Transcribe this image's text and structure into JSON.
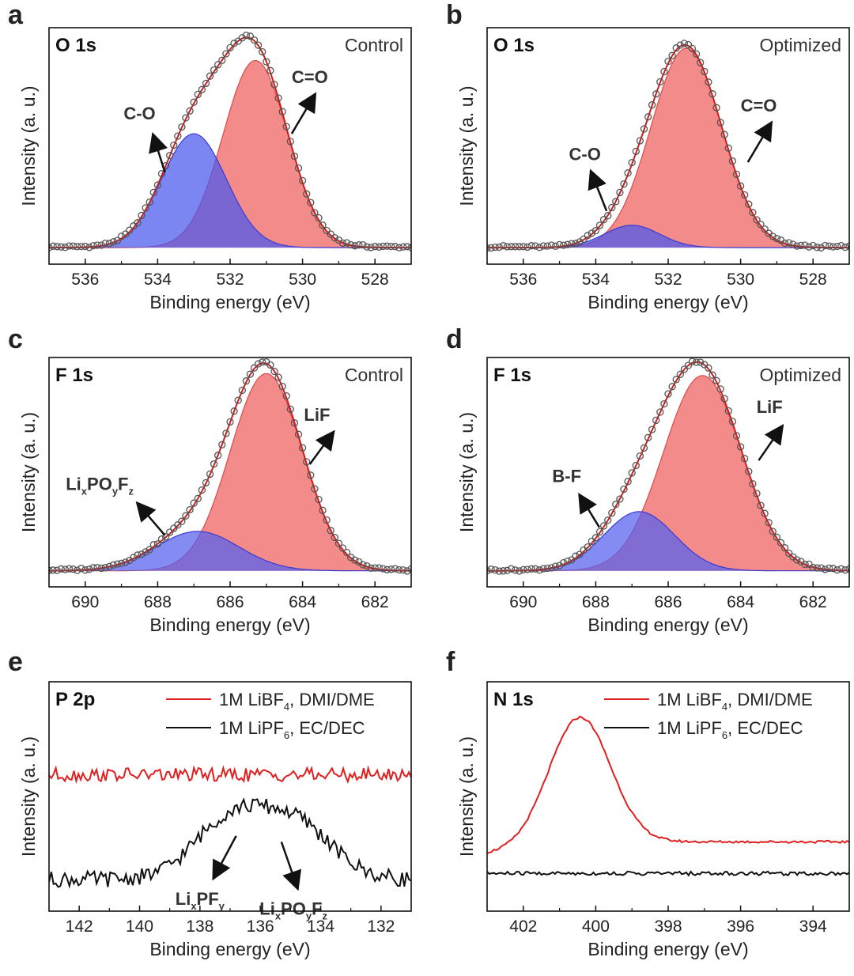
{
  "chart_data": [
    {
      "panel": "a",
      "type": "line",
      "core_level": "O 1s",
      "condition": "Control",
      "xlabel": "Binding energy (eV)",
      "ylabel": "Intensity (a. u.)",
      "xlim": [
        537,
        527
      ],
      "xticks": [
        536,
        534,
        532,
        530,
        528
      ],
      "ylim": [
        0,
        1
      ],
      "peaks": [
        {
          "name": "C-O",
          "center": 533.0,
          "height": 0.56,
          "fwhm": 2.1,
          "color": "#4a58ee"
        },
        {
          "name": "C=O",
          "center": 531.3,
          "height": 0.92,
          "fwhm": 2.1,
          "color": "#f06a6a"
        }
      ],
      "annotations": [
        {
          "text": "C-O",
          "arrow_from": [
            533.8,
            0.37
          ],
          "arrow_to": [
            534.1,
            0.54
          ],
          "text_pos": [
            534.5,
            0.63
          ]
        },
        {
          "text": "C=O",
          "arrow_from": [
            530.3,
            0.56
          ],
          "arrow_to": [
            529.7,
            0.74
          ],
          "text_pos": [
            529.8,
            0.81
          ]
        }
      ]
    },
    {
      "panel": "b",
      "type": "line",
      "core_level": "O 1s",
      "condition": "Optimized",
      "xlabel": "Binding energy (eV)",
      "ylabel": "Intensity (a. u.)",
      "xlim": [
        537,
        527
      ],
      "xticks": [
        536,
        534,
        532,
        530,
        528
      ],
      "ylim": [
        0,
        1
      ],
      "peaks": [
        {
          "name": "C-O",
          "center": 533.0,
          "height": 0.11,
          "fwhm": 1.8,
          "color": "#4a58ee"
        },
        {
          "name": "C=O",
          "center": 531.5,
          "height": 0.98,
          "fwhm": 2.3,
          "color": "#f06a6a"
        }
      ],
      "annotations": [
        {
          "text": "C-O",
          "arrow_from": [
            533.7,
            0.18
          ],
          "arrow_to": [
            534.1,
            0.36
          ],
          "text_pos": [
            534.3,
            0.43
          ]
        },
        {
          "text": "C=O",
          "arrow_from": [
            529.8,
            0.42
          ],
          "arrow_to": [
            529.2,
            0.6
          ],
          "text_pos": [
            529.5,
            0.67
          ]
        }
      ]
    },
    {
      "panel": "c",
      "type": "line",
      "core_level": "F 1s",
      "condition": "Control",
      "xlabel": "Binding energy (eV)",
      "ylabel": "Intensity (a. u.)",
      "xlim": [
        691,
        681
      ],
      "xticks": [
        690,
        688,
        686,
        684,
        682
      ],
      "ylim": [
        0,
        1
      ],
      "peaks": [
        {
          "name": "LixPOyFz",
          "center": 686.9,
          "height": 0.2,
          "fwhm": 2.7,
          "color": "#5560ee"
        },
        {
          "name": "LiF",
          "center": 685.0,
          "height": 1.0,
          "fwhm": 2.35,
          "color": "#f06a6a"
        }
      ],
      "annotations": [
        {
          "text": "LixPOyFz",
          "arrow_from": [
            687.8,
            0.18
          ],
          "arrow_to": [
            688.5,
            0.33
          ],
          "text_pos": [
            689.6,
            0.41
          ]
        },
        {
          "text": "LiF",
          "arrow_from": [
            683.8,
            0.54
          ],
          "arrow_to": [
            683.2,
            0.69
          ],
          "text_pos": [
            683.6,
            0.76
          ]
        }
      ]
    },
    {
      "panel": "d",
      "type": "line",
      "core_level": "F 1s",
      "condition": "Optimized",
      "xlabel": "Binding energy (eV)",
      "ylabel": "Intensity (a. u.)",
      "xlim": [
        691,
        681
      ],
      "xticks": [
        690,
        688,
        686,
        684,
        682
      ],
      "ylim": [
        0,
        1
      ],
      "peaks": [
        {
          "name": "B-F",
          "center": 686.8,
          "height": 0.3,
          "fwhm": 2.3,
          "color": "#5560ee"
        },
        {
          "name": "LiF",
          "center": 685.05,
          "height": 0.99,
          "fwhm": 2.55,
          "color": "#f06a6a"
        }
      ],
      "annotations": [
        {
          "text": "B-F",
          "arrow_from": [
            687.9,
            0.22
          ],
          "arrow_to": [
            688.4,
            0.37
          ],
          "text_pos": [
            688.8,
            0.45
          ]
        },
        {
          "text": "LiF",
          "arrow_from": [
            683.5,
            0.56
          ],
          "arrow_to": [
            682.9,
            0.72
          ],
          "text_pos": [
            683.2,
            0.8
          ]
        }
      ]
    },
    {
      "panel": "e",
      "type": "line",
      "core_level": "P 2p",
      "xlabel": "Binding energy (eV)",
      "ylabel": "Intensity (a. u.)",
      "xlim": [
        143,
        131
      ],
      "xticks": [
        142,
        140,
        138,
        136,
        134,
        132
      ],
      "ylim": [
        0,
        1
      ],
      "legend_position": "top-right",
      "series": [
        {
          "name_parts": [
            "1M LiBF",
            "4",
            ", DMI/DME"
          ],
          "color": "#e02020",
          "kind": "flat",
          "level": 0.61,
          "noise": 0.035
        },
        {
          "name_parts": [
            "1M LiPF",
            "6",
            ", EC/DEC"
          ],
          "color": "#111111",
          "kind": "twin",
          "level": 0.08,
          "noise": 0.04,
          "peaks": [
            {
              "center": 137.0,
              "height": 0.3,
              "fwhm": 2.8
            },
            {
              "center": 134.8,
              "height": 0.27,
              "fwhm": 2.8
            }
          ]
        }
      ],
      "annotations": [
        {
          "text_parts": [
            "Li",
            "x",
            "PF",
            "y"
          ],
          "arrow_from": [
            136.8,
            0.3
          ],
          "arrow_to": [
            137.5,
            0.1
          ],
          "text_pos": [
            138.0,
            -0.05
          ]
        },
        {
          "text_parts": [
            "Li",
            "x",
            "PO",
            "y",
            "F",
            "z"
          ],
          "arrow_from": [
            135.3,
            0.27
          ],
          "arrow_to": [
            134.8,
            0.05
          ],
          "text_pos": [
            134.9,
            -0.1
          ]
        }
      ]
    },
    {
      "panel": "f",
      "type": "line",
      "core_level": "N 1s",
      "xlabel": "Binding energy (eV)",
      "ylabel": "Intensity (a. u.)",
      "xlim": [
        403,
        393
      ],
      "xticks": [
        402,
        400,
        398,
        396,
        394
      ],
      "ylim": [
        0,
        1
      ],
      "legend_position": "top-right",
      "series": [
        {
          "name_parts": [
            "1M LiBF",
            "4",
            ", DMI/DME"
          ],
          "color": "#e02020",
          "kind": "peak",
          "baseline": 0.27,
          "level_low": 0.3,
          "peak": {
            "center": 400.45,
            "height": 0.64,
            "fwhm": 2.0
          },
          "noise": 0.006
        },
        {
          "name_parts": [
            "1M LiPF",
            "6",
            ", EC/DEC"
          ],
          "color": "#111111",
          "kind": "flat",
          "level": 0.11,
          "noise": 0.01
        }
      ]
    }
  ]
}
